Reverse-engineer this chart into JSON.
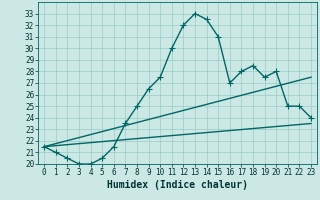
{
  "title": "",
  "xlabel": "Humidex (Indice chaleur)",
  "ylabel": "",
  "bg_color": "#cce8e4",
  "line_color": "#006666",
  "xlim": [
    -0.5,
    23.5
  ],
  "ylim": [
    20,
    34
  ],
  "yticks": [
    20,
    21,
    22,
    23,
    24,
    25,
    26,
    27,
    28,
    29,
    30,
    31,
    32,
    33
  ],
  "xticks": [
    0,
    1,
    2,
    3,
    4,
    5,
    6,
    7,
    8,
    9,
    10,
    11,
    12,
    13,
    14,
    15,
    16,
    17,
    18,
    19,
    20,
    21,
    22,
    23
  ],
  "main_line": {
    "x": [
      0,
      1,
      2,
      3,
      4,
      5,
      6,
      7,
      8,
      9,
      10,
      11,
      12,
      13,
      14,
      15,
      16,
      17,
      18,
      19,
      20,
      21,
      22,
      23
    ],
    "y": [
      21.5,
      21.0,
      20.5,
      20.0,
      20.0,
      20.5,
      21.5,
      23.5,
      25.0,
      26.5,
      27.5,
      30.0,
      32.0,
      33.0,
      32.5,
      31.0,
      27.0,
      28.0,
      28.5,
      27.5,
      28.0,
      25.0,
      25.0,
      24.0
    ]
  },
  "lower_line1": {
    "x": [
      0,
      23
    ],
    "y": [
      21.5,
      27.5
    ]
  },
  "lower_line2": {
    "x": [
      0,
      23
    ],
    "y": [
      21.5,
      23.5
    ]
  },
  "marker": "+",
  "markersize": 4,
  "linewidth": 1.0,
  "grid_color": "#99ccc8",
  "font_color": "#003333",
  "xlabel_fontsize": 7,
  "tick_fontsize": 5.5
}
